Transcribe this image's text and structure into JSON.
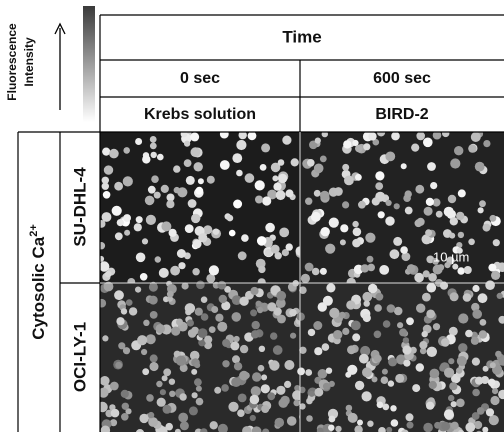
{
  "legend": {
    "label_lines": [
      "Fluorescence",
      "Intensity"
    ]
  },
  "header": {
    "title": "Time",
    "columns": [
      {
        "time": "0 sec",
        "condition": "Krebs solution"
      },
      {
        "time": "600 sec",
        "condition": "BIRD-2"
      }
    ]
  },
  "rows_title": {
    "text": "Cytosolic Ca",
    "superscript": "2+"
  },
  "rows": [
    "SU-DHL-4",
    "OCI-LY-1"
  ],
  "scale_bar": "10 µm"
}
